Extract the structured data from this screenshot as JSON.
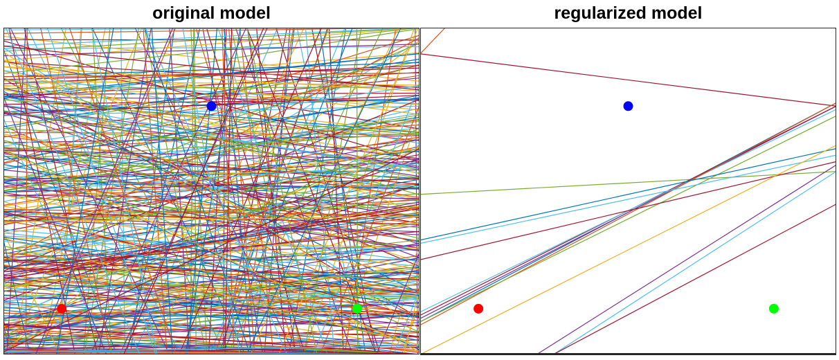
{
  "chart_data": [
    {
      "type": "line",
      "title": "original model",
      "xlim": [
        0,
        1
      ],
      "ylim": [
        0,
        1
      ],
      "grid": false,
      "legend": "none",
      "palette": [
        "#0072BD",
        "#D95319",
        "#EDB120",
        "#7E2F8E",
        "#77AC30",
        "#4DBEEE",
        "#A2142F"
      ],
      "points": [
        {
          "x": 0.14,
          "y": 0.14,
          "color": "#ff0000"
        },
        {
          "x": 0.5,
          "y": 0.76,
          "color": "#0000ff"
        },
        {
          "x": 0.85,
          "y": 0.14,
          "color": "#00ff00"
        }
      ],
      "lines_description_count": 400
    },
    {
      "type": "line",
      "title": "regularized model",
      "xlim": [
        0,
        1
      ],
      "ylim": [
        0,
        1
      ],
      "grid": false,
      "legend": "none",
      "points": [
        {
          "x": 0.14,
          "y": 0.14,
          "color": "#ff0000"
        },
        {
          "x": 0.5,
          "y": 0.76,
          "color": "#0000ff"
        },
        {
          "x": 0.85,
          "y": 0.14,
          "color": "#00ff00"
        }
      ],
      "lines": [
        {
          "x1": 0.0,
          "y1": 0.92,
          "x2": 1.0,
          "y2": 0.76,
          "color": "#A2142F"
        },
        {
          "x1": 0.0,
          "y1": 0.49,
          "x2": 1.0,
          "y2": 0.56,
          "color": "#77AC30"
        },
        {
          "x1": 0.0,
          "y1": 0.1,
          "x2": 1.0,
          "y2": 0.77,
          "color": "#0072BD"
        },
        {
          "x1": 0.0,
          "y1": 0.11,
          "x2": 1.0,
          "y2": 0.76,
          "color": "#7E2F8E"
        },
        {
          "x1": 0.0,
          "y1": 0.12,
          "x2": 1.0,
          "y2": 0.76,
          "color": "#A2142F"
        },
        {
          "x1": 0.0,
          "y1": 0.13,
          "x2": 1.0,
          "y2": 0.75,
          "color": "#4DBEEE"
        },
        {
          "x1": 0.0,
          "y1": 0.09,
          "x2": 1.0,
          "y2": 0.77,
          "color": "#D95319"
        },
        {
          "x1": 0.0,
          "y1": 0.1,
          "x2": 1.0,
          "y2": 0.73,
          "color": "#77AC30"
        },
        {
          "x1": 0.0,
          "y1": 0.35,
          "x2": 1.0,
          "y2": 0.63,
          "color": "#0072BD"
        },
        {
          "x1": 0.0,
          "y1": 0.34,
          "x2": 1.0,
          "y2": 0.61,
          "color": "#4DBEEE"
        },
        {
          "x1": 0.0,
          "y1": 0.29,
          "x2": 1.0,
          "y2": 0.59,
          "color": "#A2142F"
        },
        {
          "x1": 0.0,
          "y1": 0.0,
          "x2": 1.0,
          "y2": 0.64,
          "color": "#EDB120"
        },
        {
          "x1": 0.28,
          "y1": 0.0,
          "x2": 1.0,
          "y2": 0.58,
          "color": "#7E2F8E"
        },
        {
          "x1": 0.32,
          "y1": 0.0,
          "x2": 1.0,
          "y2": 0.56,
          "color": "#4DBEEE"
        },
        {
          "x1": 0.32,
          "y1": 0.0,
          "x2": 1.0,
          "y2": 0.46,
          "color": "#A2142F"
        },
        {
          "x1": 0.0,
          "y1": 0.92,
          "x2": 0.06,
          "y2": 1.0,
          "color": "#D95319"
        }
      ]
    }
  ]
}
